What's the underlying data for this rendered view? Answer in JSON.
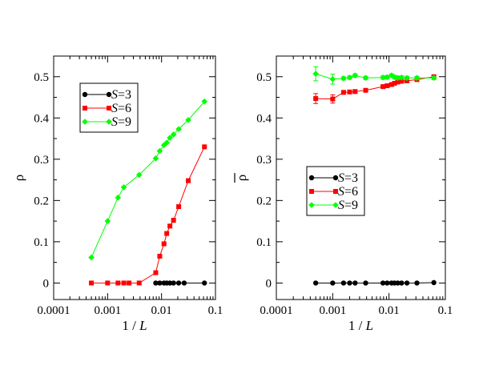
{
  "chart_data": [
    {
      "type": "line",
      "xscale": "log",
      "xlim": [
        0.0001,
        0.1
      ],
      "ylim": [
        -0.04,
        0.55
      ],
      "xticks": [
        0.0001,
        0.001,
        0.01,
        0.1
      ],
      "xtick_labels": [
        "0.0001",
        "0.001",
        "0.01",
        "0.1"
      ],
      "yticks": [
        0,
        0.1,
        0.2,
        0.3,
        0.4,
        0.5
      ],
      "ytick_labels": [
        "0",
        "0.1",
        "0.2",
        "0.3",
        "0.4",
        "0.5"
      ],
      "xlabel": {
        "prefix": "1 / ",
        "var": "L"
      },
      "ylabel": "ρ",
      "legend_placement": "upper-left",
      "series": [
        {
          "name": {
            "var": "S",
            "rest": "=3"
          },
          "color": "#000000",
          "marker": "circle",
          "x": [
            0.00781,
            0.00926,
            0.0111,
            0.0125,
            0.0143,
            0.0167,
            0.0208,
            0.0263,
            0.0625
          ],
          "y": [
            0,
            0,
            0,
            0,
            0,
            0,
            0,
            0,
            0
          ]
        },
        {
          "name": {
            "var": "S",
            "rest": "=6"
          },
          "color": "#ff0000",
          "marker": "square",
          "x": [
            0.0005,
            0.001,
            0.00156,
            0.002,
            0.0025,
            0.00385,
            0.00781,
            0.00926,
            0.0111,
            0.0125,
            0.0143,
            0.0167,
            0.0208,
            0.0313,
            0.0625
          ],
          "y": [
            0,
            0,
            0,
            0,
            0,
            0,
            0.025,
            0.065,
            0.095,
            0.12,
            0.138,
            0.152,
            0.185,
            0.248,
            0.33
          ]
        },
        {
          "name": {
            "var": "S",
            "rest": "=9"
          },
          "color": "#00ff00",
          "marker": "diamond",
          "x": [
            0.0005,
            0.001,
            0.00156,
            0.002,
            0.00385,
            0.00781,
            0.00926,
            0.0111,
            0.0125,
            0.0143,
            0.0167,
            0.0208,
            0.0313,
            0.0625
          ],
          "y": [
            0.062,
            0.15,
            0.207,
            0.232,
            0.262,
            0.302,
            0.32,
            0.334,
            0.34,
            0.352,
            0.36,
            0.373,
            0.395,
            0.44
          ]
        }
      ]
    },
    {
      "type": "line",
      "xscale": "log",
      "xlim": [
        0.0001,
        0.1
      ],
      "ylim": [
        -0.04,
        0.55
      ],
      "xticks": [
        0.0001,
        0.001,
        0.01,
        0.1
      ],
      "xtick_labels": [
        "0.0001",
        "0.001",
        "0.01",
        "0.1"
      ],
      "yticks": [
        0,
        0.1,
        0.2,
        0.3,
        0.4,
        0.5
      ],
      "ytick_labels": [
        "0",
        "0.1",
        "0.2",
        "0.3",
        "0.4",
        "0.5"
      ],
      "xlabel": {
        "prefix": "1 / ",
        "var": "L"
      },
      "ylabel": "ρ",
      "ylabel_overbar": true,
      "legend_placement": "lower-left",
      "series": [
        {
          "name": {
            "var": "S",
            "rest": "=3"
          },
          "color": "#000000",
          "marker": "circle",
          "x": [
            0.0005,
            0.001,
            0.00156,
            0.002,
            0.0025,
            0.00385,
            0.00781,
            0.00926,
            0.0111,
            0.0125,
            0.0143,
            0.0167,
            0.0208,
            0.0313,
            0.0625
          ],
          "y": [
            0,
            0,
            0,
            0,
            0,
            0,
            0,
            0,
            0,
            0,
            0,
            0,
            0,
            0,
            0.001
          ]
        },
        {
          "name": {
            "var": "S",
            "rest": "=6"
          },
          "color": "#ff0000",
          "marker": "square",
          "x": [
            0.0005,
            0.001,
            0.00156,
            0.002,
            0.0025,
            0.00385,
            0.00781,
            0.00926,
            0.0111,
            0.0125,
            0.0143,
            0.0167,
            0.0208,
            0.0313,
            0.0625
          ],
          "y": [
            0.447,
            0.446,
            0.462,
            0.463,
            0.464,
            0.467,
            0.476,
            0.478,
            0.481,
            0.484,
            0.487,
            0.489,
            0.49,
            0.493,
            0.5
          ],
          "err": [
            0.012,
            0.01,
            0.004,
            0.004,
            0.004,
            0.004,
            0.004,
            0.004,
            0.004,
            0.004,
            0.004,
            0.004,
            0.004,
            0.004,
            0.004
          ]
        },
        {
          "name": {
            "var": "S",
            "rest": "=9"
          },
          "color": "#00ff00",
          "marker": "diamond",
          "x": [
            0.0005,
            0.001,
            0.00156,
            0.002,
            0.0025,
            0.00385,
            0.00781,
            0.00926,
            0.0111,
            0.0125,
            0.0143,
            0.0167,
            0.0208,
            0.0313,
            0.0625
          ],
          "y": [
            0.507,
            0.494,
            0.496,
            0.498,
            0.503,
            0.497,
            0.498,
            0.499,
            0.503,
            0.499,
            0.497,
            0.498,
            0.497,
            0.497,
            0.497
          ],
          "err": [
            0.017,
            0.012,
            0.004,
            0.004,
            0.004,
            0.004,
            0.004,
            0.004,
            0.004,
            0.004,
            0.004,
            0.004,
            0.004,
            0.004,
            0.004
          ]
        }
      ]
    }
  ]
}
